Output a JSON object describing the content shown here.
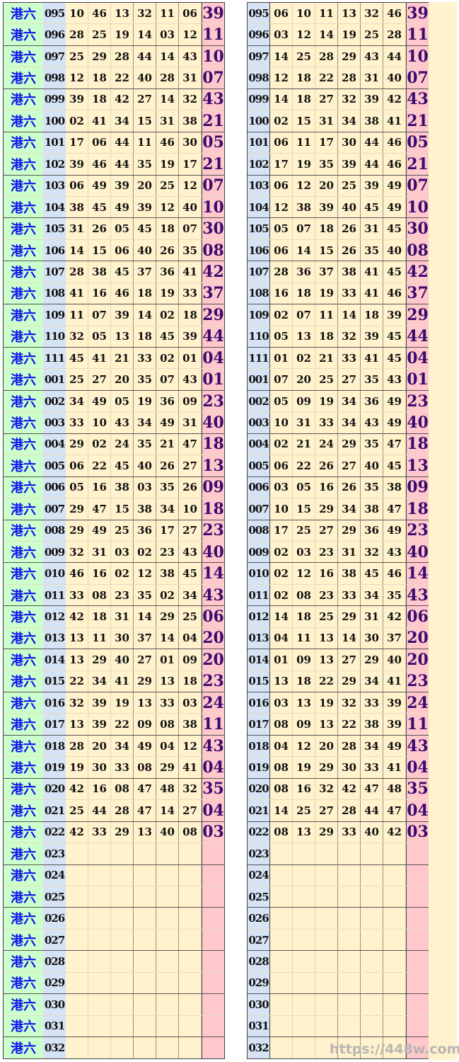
{
  "label": "港六",
  "watermark": "https://448w.com",
  "colors": {
    "label_bg": "#ccffcc",
    "issue_bg": "#d6e3f5",
    "number_bg": "#fff2cc",
    "special_bg": "#ffc8cc",
    "label_text": "#0a12f0",
    "special_text": "#3a0a6e"
  },
  "draws": [
    {
      "issue": "095",
      "numbers": [
        "10",
        "46",
        "13",
        "32",
        "11",
        "06"
      ],
      "sorted": [
        "06",
        "10",
        "11",
        "13",
        "32",
        "46"
      ],
      "special": "39"
    },
    {
      "issue": "096",
      "numbers": [
        "28",
        "25",
        "19",
        "14",
        "03",
        "12"
      ],
      "sorted": [
        "03",
        "12",
        "14",
        "19",
        "25",
        "28"
      ],
      "special": "11"
    },
    {
      "issue": "097",
      "numbers": [
        "25",
        "29",
        "28",
        "44",
        "14",
        "43"
      ],
      "sorted": [
        "14",
        "25",
        "28",
        "29",
        "43",
        "44"
      ],
      "special": "10"
    },
    {
      "issue": "098",
      "numbers": [
        "12",
        "18",
        "22",
        "40",
        "28",
        "31"
      ],
      "sorted": [
        "12",
        "18",
        "22",
        "28",
        "31",
        "40"
      ],
      "special": "07"
    },
    {
      "issue": "099",
      "numbers": [
        "39",
        "18",
        "42",
        "27",
        "14",
        "32"
      ],
      "sorted": [
        "14",
        "18",
        "27",
        "32",
        "39",
        "42"
      ],
      "special": "43"
    },
    {
      "issue": "100",
      "numbers": [
        "02",
        "41",
        "34",
        "15",
        "31",
        "38"
      ],
      "sorted": [
        "02",
        "15",
        "31",
        "34",
        "38",
        "41"
      ],
      "special": "21"
    },
    {
      "issue": "101",
      "numbers": [
        "17",
        "06",
        "44",
        "11",
        "46",
        "30"
      ],
      "sorted": [
        "06",
        "11",
        "17",
        "30",
        "44",
        "46"
      ],
      "special": "05"
    },
    {
      "issue": "102",
      "numbers": [
        "39",
        "46",
        "44",
        "35",
        "19",
        "17"
      ],
      "sorted": [
        "17",
        "19",
        "35",
        "39",
        "44",
        "46"
      ],
      "special": "21"
    },
    {
      "issue": "103",
      "numbers": [
        "06",
        "49",
        "39",
        "20",
        "25",
        "12"
      ],
      "sorted": [
        "06",
        "12",
        "20",
        "25",
        "39",
        "49"
      ],
      "special": "07"
    },
    {
      "issue": "104",
      "numbers": [
        "38",
        "45",
        "49",
        "39",
        "12",
        "40"
      ],
      "sorted": [
        "12",
        "38",
        "39",
        "40",
        "45",
        "49"
      ],
      "special": "10"
    },
    {
      "issue": "105",
      "numbers": [
        "31",
        "26",
        "05",
        "45",
        "18",
        "07"
      ],
      "sorted": [
        "05",
        "07",
        "18",
        "26",
        "31",
        "45"
      ],
      "special": "30"
    },
    {
      "issue": "106",
      "numbers": [
        "14",
        "15",
        "06",
        "40",
        "26",
        "35"
      ],
      "sorted": [
        "06",
        "14",
        "15",
        "26",
        "35",
        "40"
      ],
      "special": "08"
    },
    {
      "issue": "107",
      "numbers": [
        "28",
        "38",
        "45",
        "37",
        "36",
        "41"
      ],
      "sorted": [
        "28",
        "36",
        "37",
        "38",
        "41",
        "45"
      ],
      "special": "42"
    },
    {
      "issue": "108",
      "numbers": [
        "41",
        "16",
        "46",
        "18",
        "19",
        "33"
      ],
      "sorted": [
        "16",
        "18",
        "19",
        "33",
        "41",
        "46"
      ],
      "special": "37"
    },
    {
      "issue": "109",
      "numbers": [
        "11",
        "07",
        "39",
        "14",
        "02",
        "18"
      ],
      "sorted": [
        "02",
        "07",
        "11",
        "14",
        "18",
        "39"
      ],
      "special": "29"
    },
    {
      "issue": "110",
      "numbers": [
        "32",
        "05",
        "13",
        "18",
        "45",
        "39"
      ],
      "sorted": [
        "05",
        "13",
        "18",
        "32",
        "39",
        "45"
      ],
      "special": "44"
    },
    {
      "issue": "111",
      "numbers": [
        "45",
        "41",
        "21",
        "33",
        "02",
        "01"
      ],
      "sorted": [
        "01",
        "02",
        "21",
        "33",
        "41",
        "45"
      ],
      "special": "04"
    },
    {
      "issue": "001",
      "numbers": [
        "25",
        "27",
        "20",
        "35",
        "07",
        "43"
      ],
      "sorted": [
        "07",
        "20",
        "25",
        "27",
        "35",
        "43"
      ],
      "special": "01"
    },
    {
      "issue": "002",
      "numbers": [
        "34",
        "49",
        "05",
        "19",
        "36",
        "09"
      ],
      "sorted": [
        "05",
        "09",
        "19",
        "34",
        "36",
        "49"
      ],
      "special": "23"
    },
    {
      "issue": "003",
      "numbers": [
        "33",
        "10",
        "43",
        "34",
        "49",
        "31"
      ],
      "sorted": [
        "10",
        "31",
        "33",
        "34",
        "43",
        "49"
      ],
      "special": "40"
    },
    {
      "issue": "004",
      "numbers": [
        "29",
        "02",
        "24",
        "35",
        "21",
        "47"
      ],
      "sorted": [
        "02",
        "21",
        "24",
        "29",
        "35",
        "47"
      ],
      "special": "18"
    },
    {
      "issue": "005",
      "numbers": [
        "06",
        "22",
        "45",
        "40",
        "26",
        "27"
      ],
      "sorted": [
        "06",
        "22",
        "26",
        "27",
        "40",
        "45"
      ],
      "special": "13"
    },
    {
      "issue": "006",
      "numbers": [
        "05",
        "16",
        "38",
        "03",
        "35",
        "26"
      ],
      "sorted": [
        "03",
        "05",
        "16",
        "26",
        "35",
        "38"
      ],
      "special": "09"
    },
    {
      "issue": "007",
      "numbers": [
        "29",
        "47",
        "15",
        "38",
        "34",
        "10"
      ],
      "sorted": [
        "10",
        "15",
        "29",
        "34",
        "38",
        "47"
      ],
      "special": "18"
    },
    {
      "issue": "008",
      "numbers": [
        "29",
        "49",
        "25",
        "36",
        "17",
        "27"
      ],
      "sorted": [
        "17",
        "25",
        "27",
        "29",
        "36",
        "49"
      ],
      "special": "23"
    },
    {
      "issue": "009",
      "numbers": [
        "32",
        "31",
        "03",
        "02",
        "23",
        "43"
      ],
      "sorted": [
        "02",
        "03",
        "23",
        "31",
        "32",
        "43"
      ],
      "special": "40"
    },
    {
      "issue": "010",
      "numbers": [
        "46",
        "16",
        "02",
        "12",
        "38",
        "45"
      ],
      "sorted": [
        "02",
        "12",
        "16",
        "38",
        "45",
        "46"
      ],
      "special": "14"
    },
    {
      "issue": "011",
      "numbers": [
        "33",
        "08",
        "23",
        "35",
        "02",
        "34"
      ],
      "sorted": [
        "02",
        "08",
        "23",
        "33",
        "34",
        "35"
      ],
      "special": "43"
    },
    {
      "issue": "012",
      "numbers": [
        "42",
        "18",
        "31",
        "14",
        "29",
        "25"
      ],
      "sorted": [
        "14",
        "18",
        "25",
        "29",
        "31",
        "42"
      ],
      "special": "06"
    },
    {
      "issue": "013",
      "numbers": [
        "13",
        "11",
        "30",
        "37",
        "14",
        "04"
      ],
      "sorted": [
        "04",
        "11",
        "13",
        "14",
        "30",
        "37"
      ],
      "special": "20"
    },
    {
      "issue": "014",
      "numbers": [
        "13",
        "29",
        "40",
        "27",
        "01",
        "09"
      ],
      "sorted": [
        "01",
        "09",
        "13",
        "27",
        "29",
        "40"
      ],
      "special": "20"
    },
    {
      "issue": "015",
      "numbers": [
        "22",
        "34",
        "41",
        "29",
        "13",
        "18"
      ],
      "sorted": [
        "13",
        "18",
        "22",
        "29",
        "34",
        "41"
      ],
      "special": "23"
    },
    {
      "issue": "016",
      "numbers": [
        "32",
        "39",
        "19",
        "13",
        "33",
        "03"
      ],
      "sorted": [
        "03",
        "13",
        "19",
        "32",
        "33",
        "39"
      ],
      "special": "24"
    },
    {
      "issue": "017",
      "numbers": [
        "13",
        "39",
        "22",
        "09",
        "08",
        "38"
      ],
      "sorted": [
        "08",
        "09",
        "13",
        "22",
        "38",
        "39"
      ],
      "special": "11"
    },
    {
      "issue": "018",
      "numbers": [
        "28",
        "20",
        "34",
        "49",
        "04",
        "12"
      ],
      "sorted": [
        "04",
        "12",
        "20",
        "28",
        "34",
        "49"
      ],
      "special": "43"
    },
    {
      "issue": "019",
      "numbers": [
        "19",
        "30",
        "33",
        "08",
        "29",
        "41"
      ],
      "sorted": [
        "08",
        "19",
        "29",
        "30",
        "33",
        "41"
      ],
      "special": "04"
    },
    {
      "issue": "020",
      "numbers": [
        "42",
        "16",
        "08",
        "47",
        "48",
        "32"
      ],
      "sorted": [
        "08",
        "16",
        "32",
        "42",
        "47",
        "48"
      ],
      "special": "35"
    },
    {
      "issue": "021",
      "numbers": [
        "25",
        "44",
        "28",
        "47",
        "14",
        "27"
      ],
      "sorted": [
        "14",
        "25",
        "27",
        "28",
        "44",
        "47"
      ],
      "special": "04"
    },
    {
      "issue": "022",
      "numbers": [
        "42",
        "33",
        "29",
        "13",
        "40",
        "08"
      ],
      "sorted": [
        "08",
        "13",
        "29",
        "33",
        "40",
        "42"
      ],
      "special": "03"
    },
    {
      "issue": "023",
      "numbers": [
        "",
        "",
        "",
        "",
        "",
        ""
      ],
      "sorted": [
        "",
        "",
        "",
        "",
        "",
        ""
      ],
      "special": ""
    },
    {
      "issue": "024",
      "numbers": [
        "",
        "",
        "",
        "",
        "",
        ""
      ],
      "sorted": [
        "",
        "",
        "",
        "",
        "",
        ""
      ],
      "special": ""
    },
    {
      "issue": "025",
      "numbers": [
        "",
        "",
        "",
        "",
        "",
        ""
      ],
      "sorted": [
        "",
        "",
        "",
        "",
        "",
        ""
      ],
      "special": ""
    },
    {
      "issue": "026",
      "numbers": [
        "",
        "",
        "",
        "",
        "",
        ""
      ],
      "sorted": [
        "",
        "",
        "",
        "",
        "",
        ""
      ],
      "special": ""
    },
    {
      "issue": "027",
      "numbers": [
        "",
        "",
        "",
        "",
        "",
        ""
      ],
      "sorted": [
        "",
        "",
        "",
        "",
        "",
        ""
      ],
      "special": ""
    },
    {
      "issue": "028",
      "numbers": [
        "",
        "",
        "",
        "",
        "",
        ""
      ],
      "sorted": [
        "",
        "",
        "",
        "",
        "",
        ""
      ],
      "special": ""
    },
    {
      "issue": "029",
      "numbers": [
        "",
        "",
        "",
        "",
        "",
        ""
      ],
      "sorted": [
        "",
        "",
        "",
        "",
        "",
        ""
      ],
      "special": ""
    },
    {
      "issue": "030",
      "numbers": [
        "",
        "",
        "",
        "",
        "",
        ""
      ],
      "sorted": [
        "",
        "",
        "",
        "",
        "",
        ""
      ],
      "special": ""
    },
    {
      "issue": "031",
      "numbers": [
        "",
        "",
        "",
        "",
        "",
        ""
      ],
      "sorted": [
        "",
        "",
        "",
        "",
        "",
        ""
      ],
      "special": ""
    },
    {
      "issue": "032",
      "numbers": [
        "",
        "",
        "",
        "",
        "",
        ""
      ],
      "sorted": [
        "",
        "",
        "",
        "",
        "",
        ""
      ],
      "special": ""
    }
  ]
}
